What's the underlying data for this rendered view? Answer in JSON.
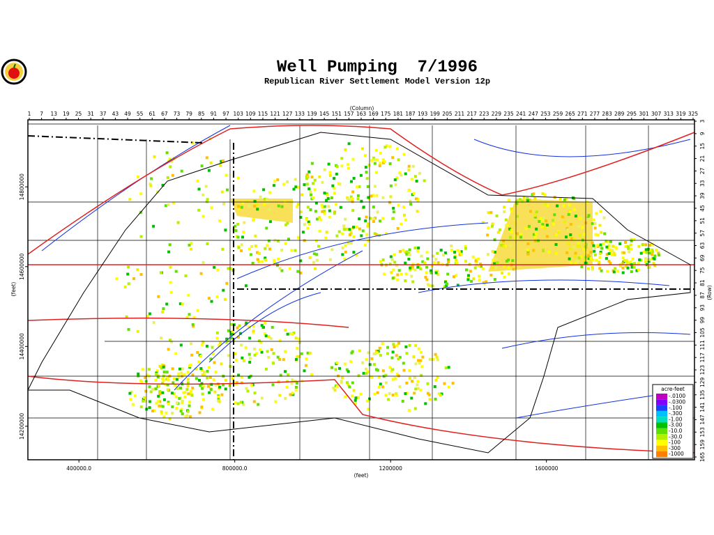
{
  "header": {
    "title": "Well Pumping  7/1996",
    "subtitle": "Republican River Settlement Model Version 12p"
  },
  "chart_data": {
    "type": "map",
    "x_axis_label": "(feet)",
    "y_axis_label": "(feet)",
    "column_label": "(Column)",
    "row_label": "(Row)",
    "xlim": [
      269000,
      1980000
    ],
    "xticks": [
      {
        "value": 400000,
        "label": "400000.0"
      },
      {
        "value": 800000,
        "label": "800000.0"
      },
      {
        "value": 1200000,
        "label": "1200000"
      },
      {
        "value": 1600000,
        "label": "1600000"
      }
    ],
    "ylim": [
      14116000,
      14968000
    ],
    "yticks": [
      14200000,
      14400000,
      14600000,
      14800000
    ],
    "columnlim": [
      1,
      325
    ],
    "columnticks": [
      1,
      7,
      13,
      19,
      25,
      31,
      37,
      43,
      49,
      55,
      61,
      67,
      73,
      79,
      85,
      91,
      97,
      103,
      109,
      115,
      121,
      127,
      133,
      139,
      145,
      151,
      157,
      163,
      169,
      175,
      181,
      187,
      193,
      199,
      205,
      211,
      217,
      223,
      229,
      235,
      241,
      247,
      253,
      259,
      265,
      271,
      277,
      283,
      289,
      295,
      301,
      307,
      313,
      319,
      325
    ],
    "rowlim": [
      3,
      165
    ],
    "rowticks": [
      3,
      9,
      15,
      21,
      27,
      33,
      39,
      45,
      51,
      57,
      63,
      69,
      75,
      81,
      87,
      93,
      99,
      105,
      111,
      117,
      123,
      129,
      135,
      141,
      147,
      153,
      159,
      165
    ],
    "legend": {
      "title": "acre-feet",
      "labels": [
        "-.0100",
        "-.0300",
        "-.100",
        "-.300",
        "-1.00",
        "-3.00",
        "-10.0",
        "-30.0",
        "-100",
        "-300",
        "-1000"
      ],
      "colors": [
        "#c000c0",
        "#8000ff",
        "#2040ff",
        "#00c0ff",
        "#00e0c0",
        "#00c000",
        "#60e000",
        "#b0f000",
        "#ffff00",
        "#ffc000",
        "#ff8000"
      ]
    }
  }
}
